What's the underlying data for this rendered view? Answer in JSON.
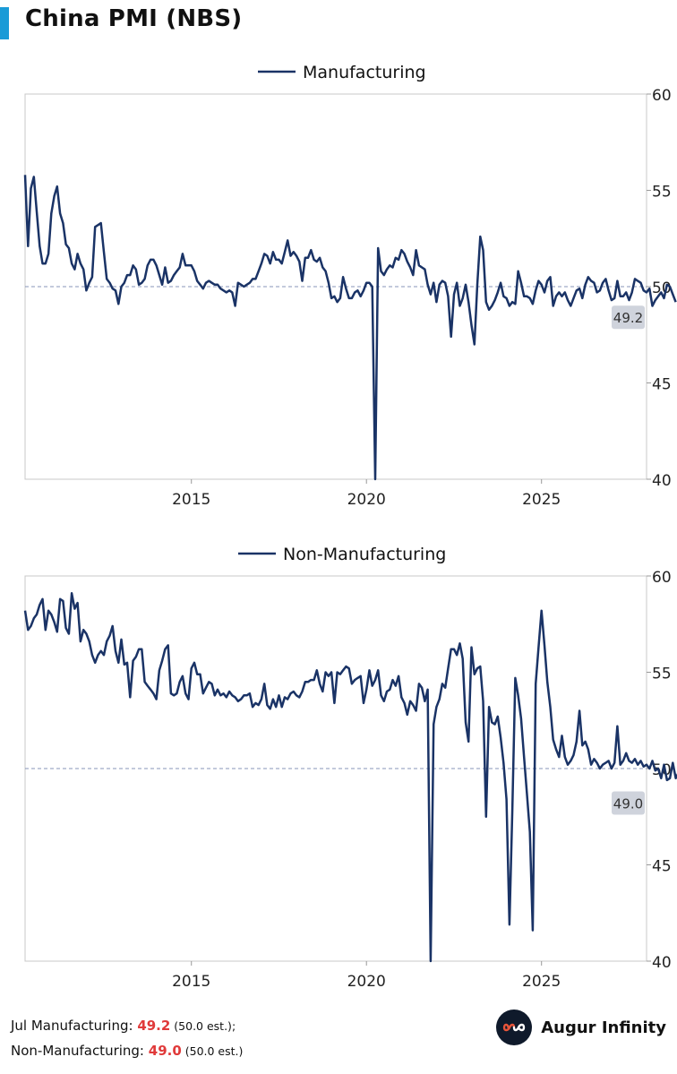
{
  "title": "China PMI (NBS)",
  "colors": {
    "line": "#1a3366",
    "accent": "#1a9bd7",
    "value_red": "#e03a3a",
    "label_box": "#cfd3dc"
  },
  "footer": {
    "line1_label": "Jul Manufacturing: ",
    "line1_value": "49.2",
    "line1_est": " (50.0 est.);",
    "line2_label": "Non-Manufacturing: ",
    "line2_value": "49.0",
    "line2_est": " (50.0 est.)"
  },
  "brand": {
    "name": "Augur Infinity",
    "icon": "infinity-logo-icon"
  },
  "chart_data": [
    {
      "type": "line",
      "series": [
        {
          "name": "Manufacturing"
        }
      ],
      "xlim": [
        2010.25,
        2028.0
      ],
      "ylim": [
        40,
        60
      ],
      "yticks": [
        40,
        45,
        50,
        55,
        60
      ],
      "xticks": [
        2015,
        2020,
        2025
      ],
      "reference_line": 50,
      "last_value_label": "49.2",
      "x_start": 2010.25,
      "values": [
        55.8,
        52.1,
        55.1,
        55.7,
        53.9,
        52.1,
        51.2,
        51.2,
        51.7,
        53.8,
        54.7,
        55.2,
        53.8,
        53.3,
        52.2,
        52.0,
        51.2,
        50.9,
        51.7,
        51.2,
        50.9,
        49.8,
        50.2,
        50.5,
        53.1,
        53.2,
        53.3,
        51.8,
        50.4,
        50.2,
        49.9,
        49.8,
        49.1,
        50.0,
        50.2,
        50.6,
        50.6,
        51.1,
        50.9,
        50.1,
        50.2,
        50.4,
        51.1,
        51.4,
        51.4,
        51.1,
        50.6,
        50.1,
        51.0,
        50.2,
        50.3,
        50.6,
        50.8,
        51.0,
        51.7,
        51.1,
        51.1,
        51.1,
        50.8,
        50.3,
        50.1,
        49.9,
        50.2,
        50.3,
        50.2,
        50.1,
        50.1,
        49.9,
        49.8,
        49.7,
        49.8,
        49.7,
        49.0,
        50.2,
        50.1,
        50.0,
        50.1,
        50.2,
        50.4,
        50.4,
        50.8,
        51.2,
        51.7,
        51.6,
        51.2,
        51.8,
        51.4,
        51.4,
        51.2,
        51.8,
        52.4,
        51.6,
        51.8,
        51.6,
        51.3,
        50.3,
        51.5,
        51.5,
        51.9,
        51.4,
        51.3,
        51.5,
        51.0,
        50.8,
        50.2,
        49.4,
        49.5,
        49.2,
        49.4,
        50.5,
        49.9,
        49.4,
        49.4,
        49.7,
        49.8,
        49.5,
        49.8,
        50.2,
        50.2,
        50.0,
        35.7,
        52.0,
        50.8,
        50.6,
        50.9,
        51.1,
        51.0,
        51.5,
        51.4,
        51.9,
        51.7,
        51.3,
        51.0,
        50.6,
        51.9,
        51.1,
        51.0,
        50.9,
        50.1,
        49.6,
        50.2,
        49.2,
        50.1,
        50.3,
        50.2,
        49.5,
        47.4,
        49.6,
        50.2,
        49.0,
        49.4,
        50.1,
        49.2,
        48.0,
        47.0,
        50.1,
        52.6,
        51.9,
        49.2,
        48.8,
        49.0,
        49.3,
        49.7,
        50.2,
        49.5,
        49.4,
        49.0,
        49.2,
        49.1,
        50.8,
        50.2,
        49.5,
        49.5,
        49.4,
        49.1,
        49.8,
        50.3,
        50.1,
        49.7,
        50.3,
        50.5,
        49.0,
        49.5,
        49.7,
        49.5,
        49.7,
        49.3,
        49.0,
        49.4,
        49.8,
        49.9,
        49.4,
        50.1,
        50.5,
        50.3,
        50.2,
        49.7,
        49.8,
        50.2,
        50.4,
        49.8,
        49.3,
        49.4,
        50.3,
        49.5,
        49.5,
        49.7,
        49.3,
        49.7,
        50.4,
        50.3,
        50.2,
        49.8,
        49.7,
        49.9,
        49.0,
        49.3,
        49.5,
        49.7,
        49.4,
        50.1,
        50.0,
        49.6,
        49.2
      ]
    },
    {
      "type": "line",
      "series": [
        {
          "name": "Non-Manufacturing"
        }
      ],
      "xlim": [
        2010.25,
        2028.0
      ],
      "ylim": [
        40,
        60
      ],
      "yticks": [
        40,
        45,
        50,
        55,
        60
      ],
      "xticks": [
        2015,
        2020,
        2025
      ],
      "reference_line": 50,
      "last_value_label": "49.0",
      "x_start": 2010.25,
      "values": [
        58.2,
        57.2,
        57.4,
        57.8,
        58.0,
        58.5,
        58.8,
        57.2,
        58.2,
        58.0,
        57.6,
        57.1,
        58.8,
        58.7,
        57.3,
        57.0,
        59.1,
        58.3,
        58.6,
        56.6,
        57.2,
        57.0,
        56.6,
        55.9,
        55.5,
        55.9,
        56.1,
        55.9,
        56.6,
        56.9,
        57.4,
        56.1,
        55.5,
        56.7,
        55.4,
        55.5,
        53.7,
        55.6,
        55.8,
        56.2,
        56.2,
        54.5,
        54.3,
        54.1,
        53.9,
        53.6,
        55.1,
        55.6,
        56.2,
        56.4,
        53.9,
        53.8,
        53.9,
        54.5,
        54.8,
        53.9,
        53.6,
        55.2,
        55.5,
        54.9,
        54.9,
        53.9,
        54.2,
        54.5,
        54.4,
        53.8,
        54.1,
        53.8,
        53.9,
        53.7,
        54.0,
        53.8,
        53.7,
        53.5,
        53.6,
        53.8,
        53.8,
        53.9,
        53.2,
        53.4,
        53.3,
        53.6,
        54.4,
        53.3,
        53.1,
        53.6,
        53.2,
        53.8,
        53.2,
        53.7,
        53.6,
        53.9,
        54.0,
        53.8,
        53.7,
        54.0,
        54.5,
        54.5,
        54.6,
        54.6,
        55.1,
        54.4,
        54.0,
        55.0,
        54.8,
        55.0,
        53.4,
        55.0,
        54.9,
        55.1,
        55.3,
        55.2,
        54.4,
        54.6,
        54.7,
        54.8,
        53.4,
        54.1,
        55.1,
        54.3,
        54.6,
        55.1,
        53.8,
        53.5,
        54.0,
        54.1,
        54.6,
        54.3,
        54.8,
        53.7,
        53.4,
        52.8,
        53.5,
        53.3,
        53.0,
        54.4,
        54.2,
        53.5,
        54.1,
        29.6,
        52.3,
        53.2,
        53.6,
        54.4,
        54.2,
        55.2,
        56.2,
        56.2,
        55.9,
        56.5,
        55.7,
        52.4,
        51.4,
        56.3,
        54.9,
        55.2,
        55.3,
        53.5,
        47.5,
        53.2,
        52.4,
        52.3,
        52.7,
        51.6,
        50.3,
        48.4,
        41.9,
        47.8,
        54.7,
        53.8,
        52.6,
        50.6,
        48.7,
        46.7,
        41.6,
        54.4,
        56.3,
        58.2,
        56.4,
        54.5,
        53.2,
        51.5,
        51.0,
        50.6,
        51.7,
        50.6,
        50.2,
        50.4,
        50.7,
        51.4,
        53.0,
        51.2,
        51.4,
        51.0,
        50.2,
        50.5,
        50.3,
        50.0,
        50.2,
        50.3,
        50.4,
        50.0,
        50.3,
        52.2,
        50.2,
        50.4,
        50.8,
        50.4,
        50.3,
        50.5,
        50.2,
        50.4,
        50.1,
        50.2,
        50.0,
        50.4,
        49.9,
        50.0,
        49.5,
        50.2,
        49.4,
        49.5,
        50.3,
        49.5,
        49.8,
        50.2,
        50.3,
        49.0
      ]
    }
  ]
}
